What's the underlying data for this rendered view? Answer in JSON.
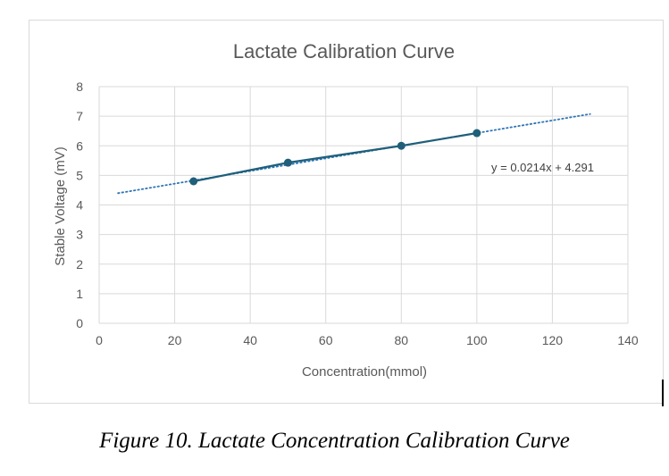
{
  "chart_data": {
    "type": "scatter",
    "title": "Lactate Calibration Curve",
    "xlabel": "Concentration(mmol)",
    "ylabel": "Stable Voltage (mV)",
    "xlim": [
      0,
      140
    ],
    "ylim": [
      0,
      8
    ],
    "xticks": [
      0,
      20,
      40,
      60,
      80,
      100,
      120,
      140
    ],
    "yticks": [
      0,
      1,
      2,
      3,
      4,
      5,
      6,
      7,
      8
    ],
    "grid": true,
    "series": [
      {
        "x": [
          25,
          50,
          80,
          100
        ],
        "y": [
          4.8,
          5.43,
          6.0,
          6.43
        ],
        "marker": "circle",
        "line": "solid",
        "color": "#1f5f7a"
      }
    ],
    "trendline": {
      "type": "linear",
      "slope": 0.0214,
      "intercept": 4.291,
      "x_range": [
        5,
        130
      ],
      "style": "dotted",
      "color": "#2e75b6",
      "equation_label": "y = 0.0214x + 4.291"
    }
  },
  "caption": "Figure 10. Lactate Concentration Calibration Curve"
}
